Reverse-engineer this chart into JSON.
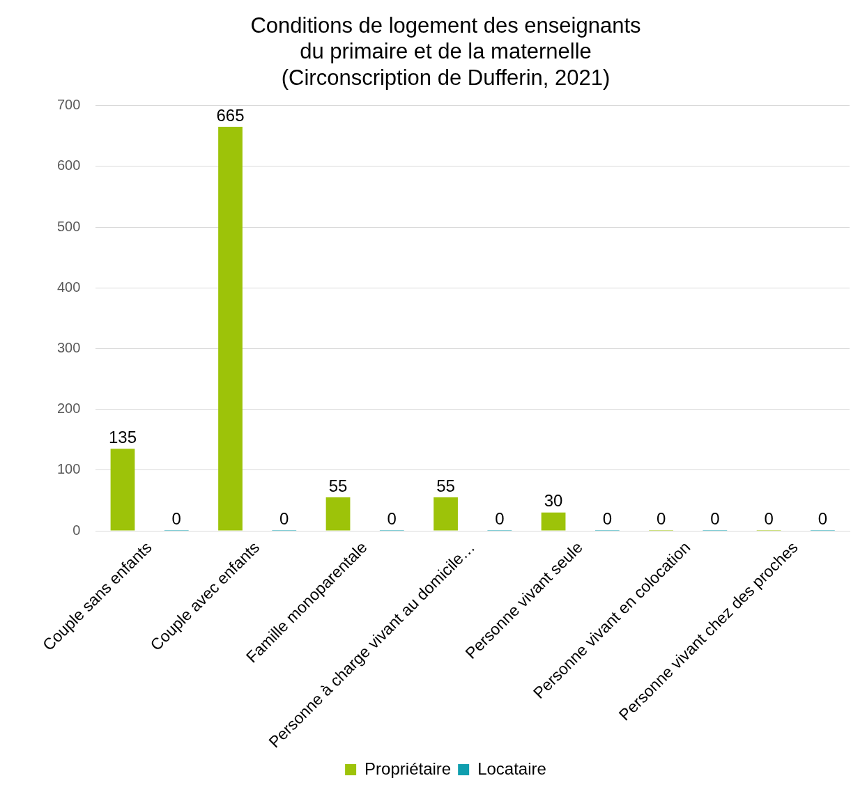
{
  "chart_data": {
    "type": "bar",
    "title": "Conditions de logement des enseignants du primaire et de la maternelle (Circonscription de Dufferin, 2021)",
    "categories": [
      "Couple sans enfants",
      "Couple avec enfants",
      "Famille monoparentale",
      "Personne à charge vivant au domicile…",
      "Personne vivant seule",
      "Personne vivant en colocation",
      "Personne vivant chez des proches"
    ],
    "series": [
      {
        "name": "Propriétaire",
        "color": "#9dc309",
        "values": [
          135,
          665,
          55,
          55,
          30,
          0,
          0
        ]
      },
      {
        "name": "Locataire",
        "color": "#0f9eae",
        "values": [
          0,
          0,
          0,
          0,
          0,
          0,
          0
        ]
      }
    ],
    "ylim": [
      0,
      700
    ],
    "yticks": [
      0,
      100,
      200,
      300,
      400,
      500,
      600,
      700
    ],
    "grid": "y",
    "legend": "bottom",
    "data_labels": true
  }
}
